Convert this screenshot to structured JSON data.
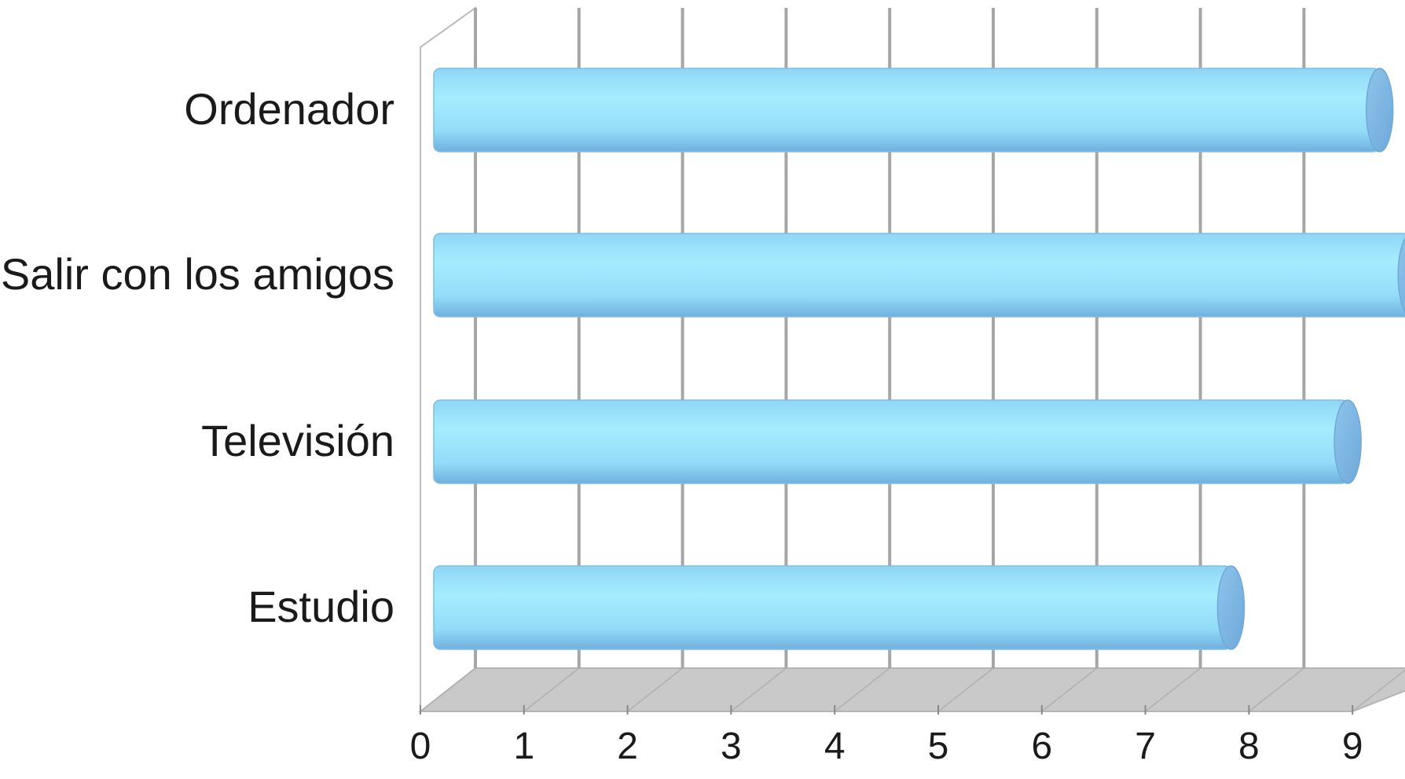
{
  "chart_data": {
    "type": "bar",
    "orientation": "horizontal",
    "style": "3d-cylinder",
    "categories": [
      "Ordenador",
      "Salir con los amigos",
      "Televisión",
      "Estudio"
    ],
    "values": [
      8.7,
      9.0,
      8.4,
      7.3
    ],
    "xlim": [
      0,
      9
    ],
    "xticks": [
      "0",
      "1",
      "2",
      "3",
      "4",
      "5",
      "6",
      "7",
      "8",
      "9"
    ],
    "title": "",
    "xlabel": "",
    "ylabel": "",
    "grid": true,
    "legend": "none",
    "colors": {
      "bar_light": "#a6ecff",
      "bar_mid": "#8fdcf8",
      "bar_dark": "#7ab6e0",
      "bar_cap": "#7fb3e0",
      "gridline": "#a6a6a6",
      "floor": "#c9c9c9",
      "text": "#1a1a1a"
    }
  }
}
